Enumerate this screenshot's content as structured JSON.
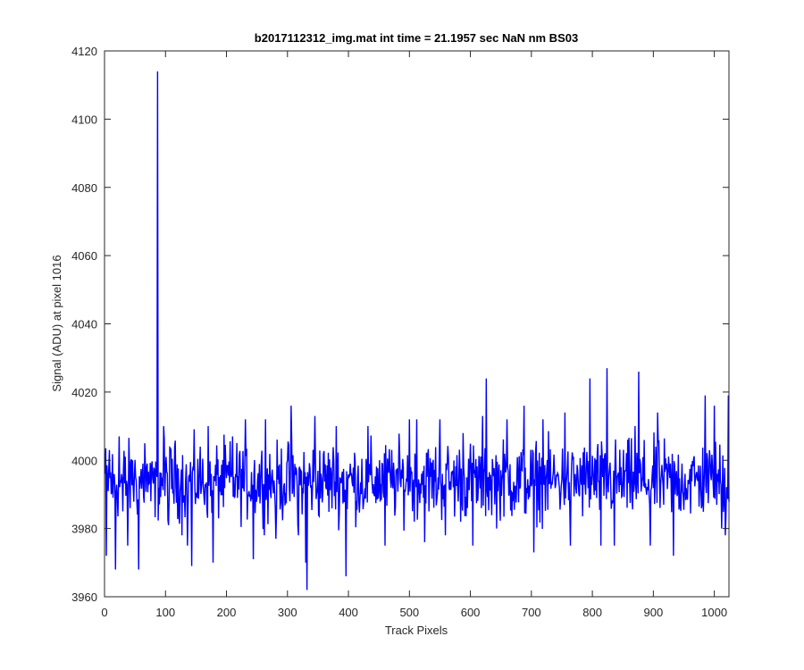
{
  "chart_data": {
    "type": "line",
    "title": "b2017112312_img.mat int time = 21.1957 sec  NaN nm BS03",
    "xlabel": "Track Pixels",
    "ylabel": "Signal (ADU) at pixel 1016",
    "xlim": [
      0,
      1024
    ],
    "ylim": [
      3960,
      4120
    ],
    "xticks": [
      0,
      100,
      200,
      300,
      400,
      500,
      600,
      700,
      800,
      900,
      1000
    ],
    "yticks": [
      3960,
      3980,
      4000,
      4020,
      4040,
      4060,
      4080,
      4100,
      4120
    ],
    "grid": false,
    "legend": "none",
    "series": [
      {
        "color": "#0000ff",
        "baseline": 3994,
        "noise_amplitude": 9,
        "n_points": 1024,
        "points": [
          [
            1,
            3996
          ],
          [
            3,
            3972
          ],
          [
            8,
            4003
          ],
          [
            14,
            3989
          ],
          [
            18,
            3968
          ],
          [
            24,
            4007
          ],
          [
            30,
            3985
          ],
          [
            38,
            3975
          ],
          [
            46,
            4000
          ],
          [
            56,
            3968
          ],
          [
            66,
            4005
          ],
          [
            76,
            3988
          ],
          [
            82,
            3997
          ],
          [
            87,
            4114
          ],
          [
            89,
            3992
          ],
          [
            97,
            4010
          ],
          [
            105,
            3981
          ],
          [
            115,
            4004
          ],
          [
            127,
            3978
          ],
          [
            136,
            3975
          ],
          [
            143,
            3969
          ],
          [
            170,
            4010
          ],
          [
            178,
            3970
          ],
          [
            210,
            4007
          ],
          [
            231,
            4012
          ],
          [
            244,
            3971
          ],
          [
            264,
            4012
          ],
          [
            281,
            3977
          ],
          [
            306,
            4016
          ],
          [
            318,
            3978
          ],
          [
            330,
            3970
          ],
          [
            332,
            3962
          ],
          [
            345,
            4013
          ],
          [
            380,
            4010
          ],
          [
            396,
            3966
          ],
          [
            432,
            4010
          ],
          [
            460,
            3975
          ],
          [
            500,
            4012
          ],
          [
            512,
            4012
          ],
          [
            525,
            3976
          ],
          [
            550,
            4012
          ],
          [
            559,
            3978
          ],
          [
            588,
            4008
          ],
          [
            604,
            3975
          ],
          [
            620,
            4013
          ],
          [
            626,
            4024
          ],
          [
            643,
            3980
          ],
          [
            660,
            4012
          ],
          [
            688,
            4016
          ],
          [
            704,
            3973
          ],
          [
            719,
            4012
          ],
          [
            755,
            4014
          ],
          [
            764,
            3975
          ],
          [
            796,
            4024
          ],
          [
            814,
            3975
          ],
          [
            824,
            4027
          ],
          [
            836,
            3975
          ],
          [
            870,
            4010
          ],
          [
            876,
            4026
          ],
          [
            895,
            3975
          ],
          [
            907,
            4014
          ],
          [
            933,
            3972
          ],
          [
            985,
            4019
          ],
          [
            1000,
            4016
          ],
          [
            1012,
            3980
          ],
          [
            1018,
            3978
          ],
          [
            1023,
            4019
          ]
        ]
      }
    ]
  }
}
